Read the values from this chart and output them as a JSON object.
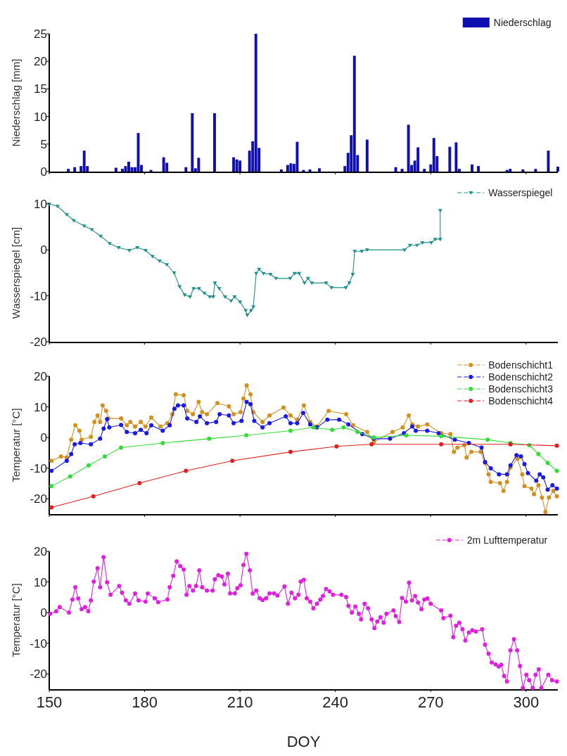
{
  "chart_data": [
    {
      "type": "bar",
      "ylabel": "Niederschlag [mm]",
      "xlim": [
        150,
        310
      ],
      "xticks": [
        150,
        180,
        210,
        240,
        270,
        300
      ],
      "ylim": [
        0,
        25
      ],
      "yticks": [
        0,
        5,
        10,
        15,
        20,
        25
      ],
      "tick_labels": "y",
      "grid": false,
      "legend": "top right",
      "series": [
        {
          "name": "Niederschlag",
          "color": "#1010b0",
          "x": [
            156,
            158,
            160,
            161,
            162,
            171,
            173,
            174,
            175,
            176,
            177,
            178,
            179,
            182,
            186,
            187,
            193,
            195,
            196,
            197,
            202,
            208,
            209,
            210,
            213,
            214,
            215,
            216,
            223,
            225,
            226,
            227,
            228,
            230,
            232,
            235,
            243,
            244,
            245,
            246,
            247,
            250,
            259,
            261,
            263,
            264,
            265,
            266,
            268,
            270,
            271,
            272,
            276,
            278,
            279,
            283,
            285,
            294,
            295,
            299,
            303,
            307,
            310
          ],
          "values": [
            0.5,
            0.8,
            1.0,
            3.8,
            1.0,
            0.7,
            0.5,
            1.0,
            1.8,
            0.8,
            0.8,
            7.0,
            1.2,
            0.3,
            2.6,
            1.6,
            0.8,
            10.6,
            0.6,
            2.5,
            10.6,
            2.6,
            2.2,
            2.0,
            3.8,
            5.5,
            25.0,
            4.3,
            0.4,
            1.2,
            1.5,
            1.4,
            5.4,
            0.3,
            0.4,
            0.6,
            1.0,
            3.4,
            6.6,
            21.0,
            3.0,
            5.8,
            0.8,
            0.5,
            8.5,
            1.2,
            2.0,
            4.4,
            0.5,
            1.3,
            6.1,
            2.8,
            4.5,
            5.3,
            0.5,
            1.3,
            1.0,
            0.3,
            0.5,
            0.4,
            0.5,
            3.8,
            0.9
          ]
        }
      ]
    },
    {
      "type": "line",
      "ylabel": "Wasserspiegel [cm]",
      "xlim": [
        150,
        310
      ],
      "xticks": [
        150,
        180,
        210,
        240,
        270,
        300
      ],
      "ylim": [
        -20,
        10
      ],
      "yticks": [
        -20,
        -10,
        0,
        10
      ],
      "tick_labels": "y",
      "grid": false,
      "legend": "top right",
      "marker": "triangle",
      "series": [
        {
          "name": "Wasserspiegel",
          "color": "#20908a",
          "x": [
            150,
            152.6,
            155.5,
            157.7,
            161,
            163.4,
            166.2,
            169,
            171.8,
            175.2,
            177.7,
            180.3,
            182.5,
            184.7,
            187,
            189.3,
            191,
            192.6,
            194.3,
            195.4,
            197.1,
            198.8,
            200.5,
            201.6,
            202.1,
            203.5,
            205.3,
            207.2,
            208.3,
            210,
            211.8,
            212.3,
            213.5,
            214.2,
            215.1,
            216,
            217.4,
            219.6,
            221.3,
            225.8,
            227.2,
            228.6,
            230.3,
            231.4,
            232.6,
            237.1,
            238.8,
            243.3,
            244.4,
            245.5,
            246.1,
            248.3,
            250,
            261.8,
            263.5,
            265.7,
            267.4,
            270.2,
            271.4,
            273,
            273
          ],
          "values": [
            10,
            9.5,
            7.7,
            6.4,
            5.2,
            4.4,
            3.0,
            1.4,
            0.5,
            -0.1,
            0.5,
            -0.1,
            -1.4,
            -2.4,
            -3.2,
            -5,
            -8,
            -9.8,
            -10.2,
            -8.4,
            -8.4,
            -9.4,
            -10.2,
            -10.2,
            -7.2,
            -8.4,
            -10.2,
            -11.1,
            -10.2,
            -11.3,
            -13.2,
            -14.2,
            -13.2,
            -12.4,
            -5.1,
            -4.2,
            -5.1,
            -5.3,
            -6.2,
            -6.2,
            -5.1,
            -5.1,
            -7.2,
            -6.2,
            -7.2,
            -7.2,
            -8.2,
            -8.2,
            -7.2,
            -5.3,
            -0.3,
            -0.3,
            0,
            0,
            1,
            1,
            1.6,
            1.6,
            2.3,
            2.3,
            8.6
          ]
        }
      ]
    },
    {
      "type": "line",
      "ylabel": "Temperatur [°C]",
      "xlim": [
        150,
        310
      ],
      "xticks": [
        150,
        180,
        210,
        240,
        270,
        300
      ],
      "ylim": [
        -25,
        20
      ],
      "yticks": [
        -20,
        -10,
        0,
        10,
        20
      ],
      "tick_labels": "y",
      "grid": false,
      "legend": "top right",
      "marker": "circle",
      "series": [
        {
          "name": "Bodenschicht1",
          "color": "#d4901e",
          "x": [
            150.7,
            153.7,
            155.5,
            156.9,
            158.2,
            159.5,
            160.2,
            163.1,
            164.2,
            165.2,
            166,
            166.8,
            167.9,
            168.6,
            172.6,
            174.4,
            175.5,
            177,
            178.8,
            180.3,
            182.1,
            185,
            187.2,
            188.7,
            189.8,
            192.3,
            193.4,
            195.2,
            197,
            198.1,
            199.6,
            202.9,
            206.5,
            208,
            210.2,
            211.1,
            212.1,
            213.3,
            214.2,
            217.1,
            219.3,
            223.7,
            225.9,
            228,
            230.1,
            232.1,
            234.2,
            237.9,
            243.4,
            245.6,
            250,
            252.1,
            258,
            261.2,
            263.1,
            264.2,
            266,
            268.9,
            273.3,
            276.2,
            277.3,
            278.4,
            280.6,
            281.3,
            282.8,
            285.7,
            287.1,
            288.2,
            288.9,
            291.8,
            292.9,
            294,
            295.1,
            297.3,
            298.8,
            299.5,
            301.7,
            302.5,
            303.9,
            305,
            306.1,
            307.2,
            308.6,
            309.7
          ],
          "values": [
            -7.6,
            -6.2,
            -6.5,
            -0.7,
            4.0,
            2.2,
            -0.7,
            0.2,
            5.1,
            7.2,
            5.1,
            10.5,
            8.7,
            6.2,
            6.2,
            4.0,
            5.1,
            3.6,
            5.1,
            3.6,
            6.5,
            3.6,
            4.7,
            7.6,
            14.1,
            13.8,
            8.7,
            7.6,
            11.6,
            8.3,
            7.6,
            11.2,
            10.2,
            7.6,
            8.3,
            12.7,
            17.0,
            14.1,
            8.3,
            5.1,
            7.2,
            9.8,
            7.2,
            5.8,
            10.5,
            5.1,
            3.6,
            8.7,
            7.6,
            4.0,
            1.8,
            -1.4,
            1.8,
            3.3,
            7.2,
            4.3,
            3.6,
            4.3,
            1.4,
            1.1,
            -4.7,
            -3.3,
            -2.5,
            -6.5,
            -4.7,
            -4.7,
            -8.3,
            -12,
            -14.5,
            -14.9,
            -17.4,
            -14.5,
            -9.8,
            -6.9,
            -12,
            -15.9,
            -16.7,
            -18.5,
            -15.6,
            -19.6,
            -24.3,
            -19.6,
            -17.4,
            -19.2
          ]
        },
        {
          "name": "Bodenschicht2",
          "color": "#1a1ae0",
          "x": [
            150.7,
            155.5,
            156.9,
            158,
            159.8,
            163.1,
            166,
            167.1,
            168.2,
            168.9,
            172.6,
            174.4,
            177,
            178.8,
            180.6,
            182.1,
            185.7,
            187.9,
            189.4,
            190.5,
            192.3,
            193.4,
            196.3,
            197.4,
            199.6,
            202.5,
            203.6,
            206.5,
            208,
            210.5,
            212.1,
            213.3,
            214.5,
            217.1,
            219.3,
            224.4,
            225.9,
            228,
            229.9,
            232.1,
            234.2,
            237.5,
            241.2,
            244.1,
            248.5,
            252.1,
            257.2,
            261.6,
            264.2,
            265.3,
            268.9,
            272.5,
            277.6,
            282,
            286,
            287.1,
            288.9,
            291.5,
            294,
            295.1,
            297,
            298.4,
            299.5,
            300.6,
            303.2,
            304.3,
            305.4,
            306.8,
            308.3,
            309.7
          ],
          "values": [
            -10.9,
            -7.6,
            -5.4,
            -2.2,
            -1.8,
            -2.2,
            -0.4,
            2.9,
            6.0,
            3.3,
            4.1,
            1.8,
            1.4,
            2.5,
            1.4,
            4.0,
            2.2,
            4.0,
            9.4,
            10.5,
            10.5,
            6.2,
            5.1,
            6.9,
            4.7,
            5.1,
            7.6,
            7.2,
            4.7,
            5.4,
            11.6,
            10.9,
            5.4,
            3.3,
            4.7,
            6.9,
            4.7,
            4.7,
            8.0,
            4.3,
            3.3,
            5.8,
            5.8,
            4.3,
            1.1,
            -0.4,
            -0.4,
            1.4,
            3.6,
            2.2,
            2.2,
            1.4,
            -0.7,
            -1.8,
            -3.3,
            -8,
            -10.1,
            -12,
            -12,
            -9.1,
            -5.8,
            -6.2,
            -8.7,
            -11.6,
            -14.1,
            -12,
            -13,
            -17,
            -15.6,
            -16.7
          ]
        },
        {
          "name": "Bodenschicht3",
          "color": "#33dd33",
          "x": [
            150.7,
            156.6,
            162.4,
            167.5,
            172.6,
            185.7,
            200.3,
            212,
            225.9,
            233.1,
            239,
            242.6,
            247,
            252.1,
            262.3,
            273.3,
            287.9,
            295.1,
            301,
            303.9,
            306.8,
            309.7
          ],
          "values": [
            -15.9,
            -12.7,
            -9.1,
            -6.2,
            -3.3,
            -1.8,
            -0.4,
            0.7,
            2.2,
            3.3,
            2.5,
            3.3,
            1.8,
            0,
            0.7,
            0.4,
            -0.7,
            -1.8,
            -2.5,
            -5.4,
            -8.3,
            -10.9
          ]
        },
        {
          "name": "Bodenschicht4",
          "color": "#e02020",
          "x": [
            150.7,
            163.9,
            178.4,
            193,
            207.6,
            225.9,
            240.4,
            251.4,
            273.3,
            295.1,
            309.7
          ],
          "values": [
            -22.8,
            -19.2,
            -14.9,
            -10.9,
            -7.6,
            -4.7,
            -2.9,
            -2.2,
            -2.2,
            -2.2,
            -2.7
          ]
        }
      ]
    },
    {
      "type": "line",
      "ylabel": "Temperatur [°C]",
      "xlabel": "DOY",
      "xlim": [
        150,
        310
      ],
      "xticks": [
        150,
        180,
        210,
        240,
        270,
        300
      ],
      "ylim": [
        -25,
        20
      ],
      "yticks": [
        -20,
        -10,
        0,
        10,
        20
      ],
      "grid": false,
      "legend": "top right",
      "marker": "circle",
      "series": [
        {
          "name": "2m Lufttemperatur",
          "color": "#e020e0",
          "x": [
            150.3,
            152.2,
            153.3,
            156.2,
            157.3,
            158.2,
            159.1,
            160.2,
            161.3,
            162.3,
            163.1,
            164,
            165.2,
            166,
            167.1,
            168.2,
            169.3,
            172,
            172.9,
            174.1,
            175.2,
            177,
            178.1,
            180.3,
            181,
            183.2,
            184.3,
            187.2,
            187.9,
            189,
            190.1,
            191.2,
            192.3,
            193.2,
            194.1,
            195.2,
            196.2,
            197.2,
            198.1,
            199.6,
            201.4,
            202.1,
            203.2,
            204.3,
            205.1,
            206.2,
            206.9,
            208.4,
            209.2,
            210.2,
            211.1,
            212,
            213.1,
            214,
            215.1,
            216.2,
            217.1,
            218.2,
            219.3,
            220.7,
            221.8,
            224,
            225.1,
            226.2,
            227.3,
            228.4,
            229.1,
            230.1,
            231,
            232.1,
            233.1,
            234.2,
            235.3,
            236.1,
            237.1,
            238.2,
            239.3,
            241.9,
            243.4,
            244.1,
            245.2,
            246.3,
            247.4,
            248.1,
            249.2,
            250.3,
            251.4,
            252.3,
            253.2,
            254.2,
            255.2,
            256.1,
            258.3,
            259,
            260.1,
            261,
            262.2,
            263.2,
            264.1,
            265.1,
            266,
            267.1,
            268,
            269,
            270,
            273.3,
            274,
            276.2,
            277.1,
            278,
            279,
            280,
            280.9,
            282,
            283.1,
            284.2,
            286.2,
            287.1,
            288.2,
            289.2,
            290.4,
            291.4,
            292.2,
            293.1,
            294,
            295.1,
            296.2,
            297.2,
            298.1,
            299,
            300.1,
            301,
            302.1,
            303,
            304,
            304.8,
            307,
            308.2,
            309.7
          ],
          "values": [
            -0.4,
            0.4,
            1.8,
            0,
            4.3,
            8.3,
            4.6,
            1.1,
            1.8,
            0.4,
            4.0,
            10.1,
            14.5,
            8.3,
            18.1,
            9.9,
            5.8,
            8.7,
            6.5,
            4.0,
            2.9,
            6.2,
            4.0,
            3.6,
            6.2,
            4.7,
            3.4,
            4.3,
            8.3,
            12,
            16.7,
            15.2,
            14.1,
            5.8,
            8.7,
            7.2,
            8.7,
            13.8,
            8.3,
            7.2,
            7.2,
            10.9,
            12.2,
            11.8,
            9.2,
            12.7,
            6.3,
            6.3,
            8.0,
            8.9,
            15.6,
            19.2,
            13.8,
            6.2,
            7.2,
            4.7,
            4.1,
            4.7,
            6.3,
            6.3,
            5.6,
            8.5,
            2.9,
            6.5,
            4.7,
            5.8,
            10.1,
            10.7,
            4.7,
            3.6,
            1.4,
            2.9,
            4.3,
            5.4,
            7.7,
            6.9,
            5.8,
            5.8,
            5.1,
            2.2,
            0,
            2.0,
            -0.4,
            -2.2,
            2.9,
            1.4,
            -2.2,
            -5.1,
            -2.9,
            -1.5,
            -3.3,
            -0.4,
            0.7,
            -1.1,
            -3.1,
            4.8,
            3.6,
            9.8,
            4.0,
            5.4,
            3.3,
            1.1,
            4.3,
            4.6,
            2.9,
            0.7,
            -1.8,
            -1.0,
            -8,
            -4.3,
            -3.3,
            -5.4,
            -9.1,
            -6.5,
            -5.8,
            -6.2,
            -5.4,
            -10.5,
            -13.4,
            -16.3,
            -16.9,
            -17.6,
            -17,
            -20.7,
            -22.5,
            -12.3,
            -8.7,
            -12.3,
            -17.4,
            -24.6,
            -20.3,
            -22.1,
            -24.6,
            -20.3,
            -18.5,
            -24.6,
            -20.3,
            -22.1,
            -22.5
          ]
        }
      ]
    }
  ]
}
